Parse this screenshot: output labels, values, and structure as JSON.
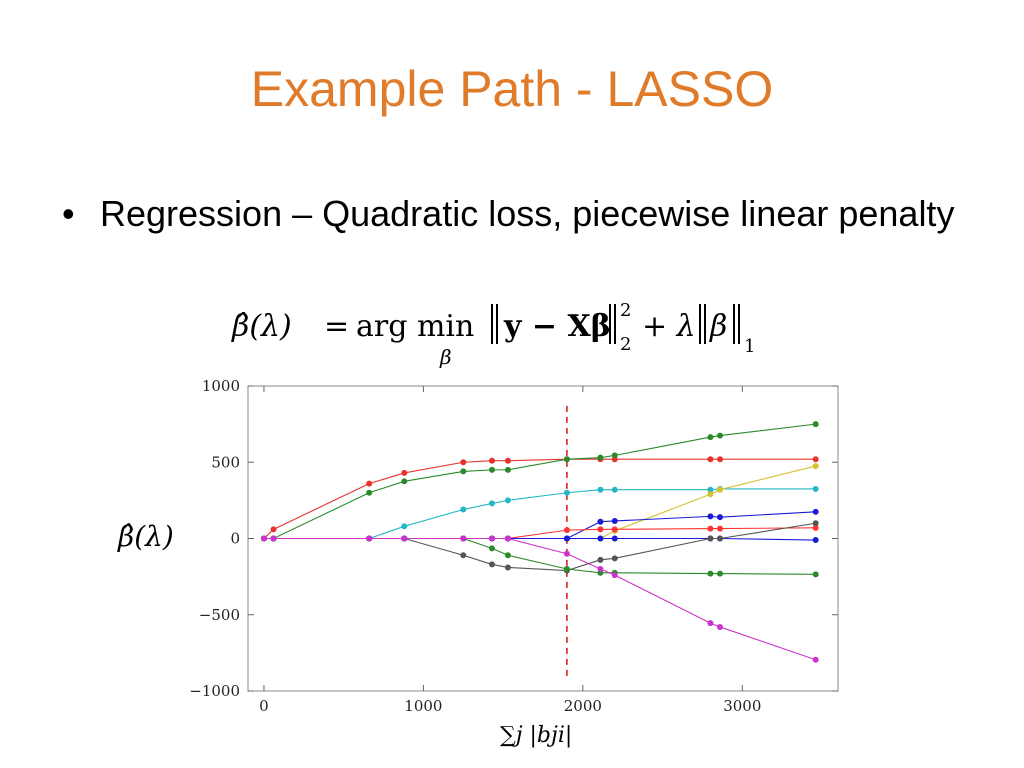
{
  "slide": {
    "title": "Example Path - LASSO",
    "bullet": "Regression – Quadratic loss, piecewise linear penalty",
    "bullet_symbol": "•"
  },
  "formula": {
    "lhs": "β̂(λ)",
    "eq": "=",
    "argmin": "arg min",
    "sub": "β",
    "norm1_inner": "y − Xβ",
    "sq_sup": "2",
    "sq_sub": "2",
    "plus": "+ λ",
    "norm2_inner": "β",
    "l1_sub": "1"
  },
  "chart_data": {
    "type": "line",
    "ylabel": "β̂(λ)",
    "xlabel": "∑j |bji|",
    "xlim": [
      -100,
      3600
    ],
    "ylim": [
      -1000,
      1000
    ],
    "xticks": [
      0,
      1000,
      2000,
      3000
    ],
    "yticks": [
      1000,
      500,
      0,
      -500,
      -1000
    ],
    "ytick_labels": [
      "1000",
      "500",
      "0",
      "−500",
      "−1000"
    ],
    "xtick_labels": [
      "0",
      "1000",
      "2000",
      "3000"
    ],
    "vline": {
      "x": 1900,
      "color": "#dd2222"
    },
    "grid": false,
    "series": [
      {
        "color": "#e8322e",
        "points": [
          [
            0,
            0
          ],
          [
            60,
            60
          ],
          [
            660,
            360
          ],
          [
            880,
            430
          ],
          [
            1250,
            500
          ],
          [
            1430,
            510
          ],
          [
            1530,
            510
          ],
          [
            1900,
            520
          ],
          [
            2110,
            520
          ],
          [
            2200,
            520
          ],
          [
            2800,
            520
          ],
          [
            2860,
            520
          ],
          [
            3460,
            520
          ]
        ]
      },
      {
        "color": "#2a8a2a",
        "points": [
          [
            0,
            0
          ],
          [
            60,
            0
          ],
          [
            660,
            300
          ],
          [
            880,
            375
          ],
          [
            1250,
            440
          ],
          [
            1430,
            450
          ],
          [
            1530,
            450
          ],
          [
            1900,
            520
          ],
          [
            2110,
            530
          ],
          [
            2200,
            545
          ],
          [
            2800,
            665
          ],
          [
            2860,
            675
          ],
          [
            3460,
            750
          ]
        ]
      },
      {
        "color": "#22b8c8",
        "points": [
          [
            0,
            0
          ],
          [
            60,
            0
          ],
          [
            660,
            0
          ],
          [
            880,
            80
          ],
          [
            1250,
            190
          ],
          [
            1430,
            230
          ],
          [
            1530,
            250
          ],
          [
            1900,
            300
          ],
          [
            2110,
            320
          ],
          [
            2200,
            320
          ],
          [
            2800,
            320
          ],
          [
            2860,
            325
          ],
          [
            3460,
            325
          ]
        ]
      },
      {
        "color": "#d4c22e",
        "points": [
          [
            0,
            0
          ],
          [
            60,
            0
          ],
          [
            660,
            0
          ],
          [
            880,
            0
          ],
          [
            1250,
            0
          ],
          [
            1430,
            0
          ],
          [
            1530,
            0
          ],
          [
            1900,
            0
          ],
          [
            2110,
            0
          ],
          [
            2200,
            50
          ],
          [
            2800,
            290
          ],
          [
            2860,
            320
          ],
          [
            3460,
            475
          ]
        ]
      },
      {
        "color": "#1a1ad6",
        "points": [
          [
            0,
            0
          ],
          [
            60,
            0
          ],
          [
            660,
            0
          ],
          [
            880,
            0
          ],
          [
            1250,
            0
          ],
          [
            1430,
            0
          ],
          [
            1530,
            0
          ],
          [
            1900,
            0
          ],
          [
            2110,
            110
          ],
          [
            2200,
            115
          ],
          [
            2800,
            145
          ],
          [
            2860,
            140
          ],
          [
            3460,
            175
          ]
        ]
      },
      {
        "color": "#ff3333",
        "points": [
          [
            0,
            0
          ],
          [
            60,
            0
          ],
          [
            660,
            0
          ],
          [
            880,
            0
          ],
          [
            1250,
            0
          ],
          [
            1430,
            0
          ],
          [
            1530,
            0
          ],
          [
            1900,
            55
          ],
          [
            2110,
            60
          ],
          [
            2200,
            60
          ],
          [
            2800,
            65
          ],
          [
            2860,
            65
          ],
          [
            3460,
            70
          ]
        ]
      },
      {
        "color": "#1a1ad6",
        "points": [
          [
            0,
            0
          ],
          [
            60,
            0
          ],
          [
            660,
            0
          ],
          [
            880,
            0
          ],
          [
            1250,
            0
          ],
          [
            1430,
            0
          ],
          [
            1530,
            0
          ],
          [
            1900,
            0
          ],
          [
            2110,
            0
          ],
          [
            2200,
            0
          ],
          [
            2800,
            0
          ],
          [
            2860,
            0
          ],
          [
            3460,
            -10
          ]
        ]
      },
      {
        "color": "#555555",
        "points": [
          [
            0,
            0
          ],
          [
            60,
            0
          ],
          [
            660,
            0
          ],
          [
            880,
            0
          ],
          [
            1250,
            -110
          ],
          [
            1430,
            -170
          ],
          [
            1530,
            -190
          ],
          [
            1900,
            -210
          ],
          [
            2110,
            -140
          ],
          [
            2200,
            -130
          ],
          [
            2800,
            0
          ],
          [
            2860,
            0
          ],
          [
            3460,
            100
          ]
        ]
      },
      {
        "color": "#2a8a2a",
        "points": [
          [
            0,
            0
          ],
          [
            60,
            0
          ],
          [
            660,
            0
          ],
          [
            880,
            0
          ],
          [
            1250,
            0
          ],
          [
            1430,
            -65
          ],
          [
            1530,
            -110
          ],
          [
            1900,
            -200
          ],
          [
            2110,
            -225
          ],
          [
            2200,
            -225
          ],
          [
            2800,
            -230
          ],
          [
            2860,
            -230
          ],
          [
            3460,
            -235
          ]
        ]
      },
      {
        "color": "#cc33cc",
        "points": [
          [
            0,
            0
          ],
          [
            60,
            0
          ],
          [
            660,
            0
          ],
          [
            880,
            0
          ],
          [
            1250,
            0
          ],
          [
            1430,
            0
          ],
          [
            1530,
            0
          ],
          [
            1900,
            -100
          ],
          [
            2110,
            -200
          ],
          [
            2200,
            -240
          ],
          [
            2800,
            -555
          ],
          [
            2860,
            -580
          ],
          [
            3460,
            -795
          ]
        ]
      }
    ]
  }
}
